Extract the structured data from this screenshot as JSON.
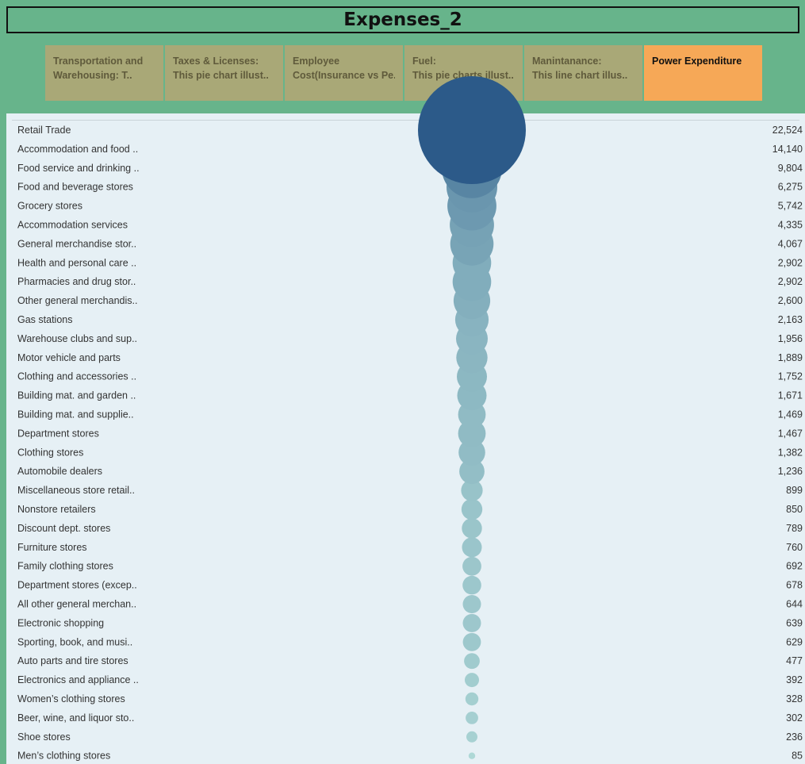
{
  "header": {
    "title": "Expenses_2"
  },
  "tabs": [
    {
      "line1": "Transportation and",
      "line2": "Warehousing:       T..",
      "active": false
    },
    {
      "line1": "Taxes & Licenses:",
      "line2": "    This pie chart illust..",
      "active": false
    },
    {
      "line1": "Employee",
      "line2": "Cost(Insurance vs Pe..",
      "active": false
    },
    {
      "line1": "Fuel:",
      "line2": "    This pie charts illust..",
      "active": false
    },
    {
      "line1": "Manintanance:",
      "line2": "    This line chart illus..",
      "active": false
    },
    {
      "line1": "Power Expenditure",
      "line2": "",
      "active": true
    }
  ],
  "colors": {
    "background": "#67b48b",
    "tab": "#a9a877",
    "tab_active": "#f6a857",
    "panel": "#e6f0f5",
    "bubble_max": "#2c5a89",
    "bubble_min": "#b9e3dd"
  },
  "chart_data": {
    "type": "bubble",
    "categories": [
      "Retail Trade",
      "Accommodation and food ..",
      "Food service and drinking ..",
      "Food and beverage stores",
      "Grocery stores",
      "Accommodation services",
      "General merchandise stor..",
      "Health and personal care ..",
      "Pharmacies and drug stor..",
      "Other general merchandis..",
      "Gas stations",
      "Warehouse clubs and sup..",
      "Motor vehicle and parts",
      "Clothing and accessories ..",
      "Building mat. and garden ..",
      "Building mat. and supplie..",
      "Department stores",
      "Clothing stores",
      "Automobile dealers",
      "Miscellaneous store retail..",
      "Nonstore retailers",
      "Discount dept. stores",
      "Furniture stores",
      "Family clothing stores",
      "Department stores (excep..",
      "All other general merchan..",
      "Electronic shopping",
      "Sporting, book, and  musi..",
      "Auto parts and tire stores",
      "Electronics and appliance ..",
      "Women’s clothing stores",
      "Beer, wine, and liquor sto..",
      "Shoe stores",
      "Men’s clothing stores"
    ],
    "values": [
      22524,
      14140,
      9804,
      6275,
      5742,
      4335,
      4067,
      2902,
      2902,
      2600,
      2163,
      1956,
      1889,
      1752,
      1671,
      1469,
      1467,
      1382,
      1236,
      899,
      850,
      789,
      760,
      692,
      678,
      644,
      639,
      629,
      477,
      392,
      328,
      302,
      236,
      85
    ],
    "value_labels": [
      "22,524",
      "14,140",
      "9,804",
      "6,275",
      "5,742",
      "4,335",
      "4,067",
      "2,902",
      "2,902",
      "2,600",
      "2,163",
      "1,956",
      "1,889",
      "1,752",
      "1,671",
      "1,469",
      "1,467",
      "1,382",
      "1,236",
      "899",
      "850",
      "789",
      "760",
      "692",
      "678",
      "644",
      "639",
      "629",
      "477",
      "392",
      "328",
      "302",
      "236",
      "85"
    ]
  }
}
